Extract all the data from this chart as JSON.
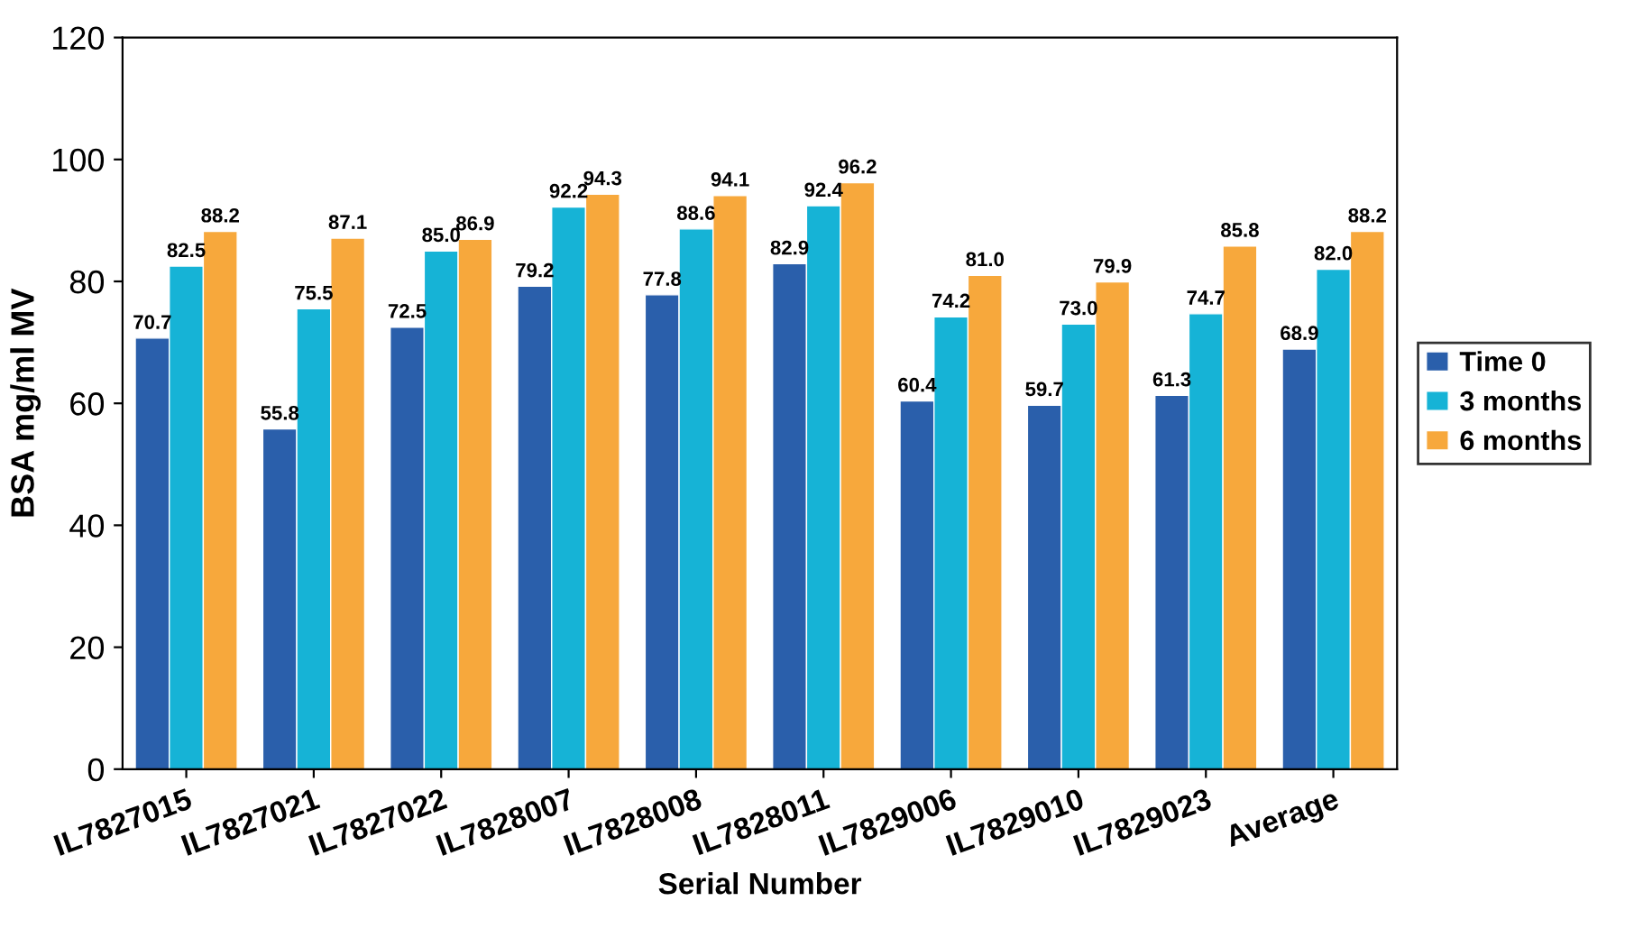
{
  "chart_data": {
    "type": "bar",
    "xlabel": "Serial Number",
    "ylabel": "BSA mg/ml MV",
    "categories": [
      "IL7827015",
      "IL7827021",
      "IL7827022",
      "IL7828007",
      "IL7828008",
      "IL7828011",
      "IL7829006",
      "IL7829010",
      "IL7829023",
      "Average"
    ],
    "series": [
      {
        "name": "Time 0",
        "color": "#2a5fab",
        "values": [
          70.7,
          55.8,
          72.5,
          79.2,
          77.8,
          82.9,
          60.4,
          59.7,
          61.3,
          68.9
        ],
        "value_labels": [
          "70.7",
          "55.8",
          "72.5",
          "79.2",
          "77.8",
          "82.9",
          "60.4",
          "59.7",
          "61.3",
          "68.9"
        ]
      },
      {
        "name": "3 months",
        "color": "#16b3d6",
        "values": [
          82.5,
          75.5,
          85.0,
          92.2,
          88.6,
          92.4,
          74.2,
          73.0,
          74.7,
          82.0
        ],
        "value_labels": [
          "82.5",
          "75.5",
          "85.0",
          "92.2",
          "88.6",
          "92.4",
          "74.2",
          "73.0",
          "74.7",
          "82.0"
        ]
      },
      {
        "name": "6 months",
        "color": "#f7a83c",
        "values": [
          88.2,
          87.1,
          86.9,
          94.3,
          94.1,
          96.2,
          81.0,
          79.9,
          85.8,
          88.2
        ],
        "value_labels": [
          "88.2",
          "87.1",
          "86.9",
          "94.3",
          "94.1",
          "96.2",
          "81.0",
          "79.9",
          "85.8",
          "88.2"
        ]
      }
    ],
    "ylim": [
      0,
      120
    ],
    "yticks": [
      0,
      20,
      40,
      60,
      80,
      100,
      120
    ],
    "grid": false,
    "legend": "right"
  }
}
